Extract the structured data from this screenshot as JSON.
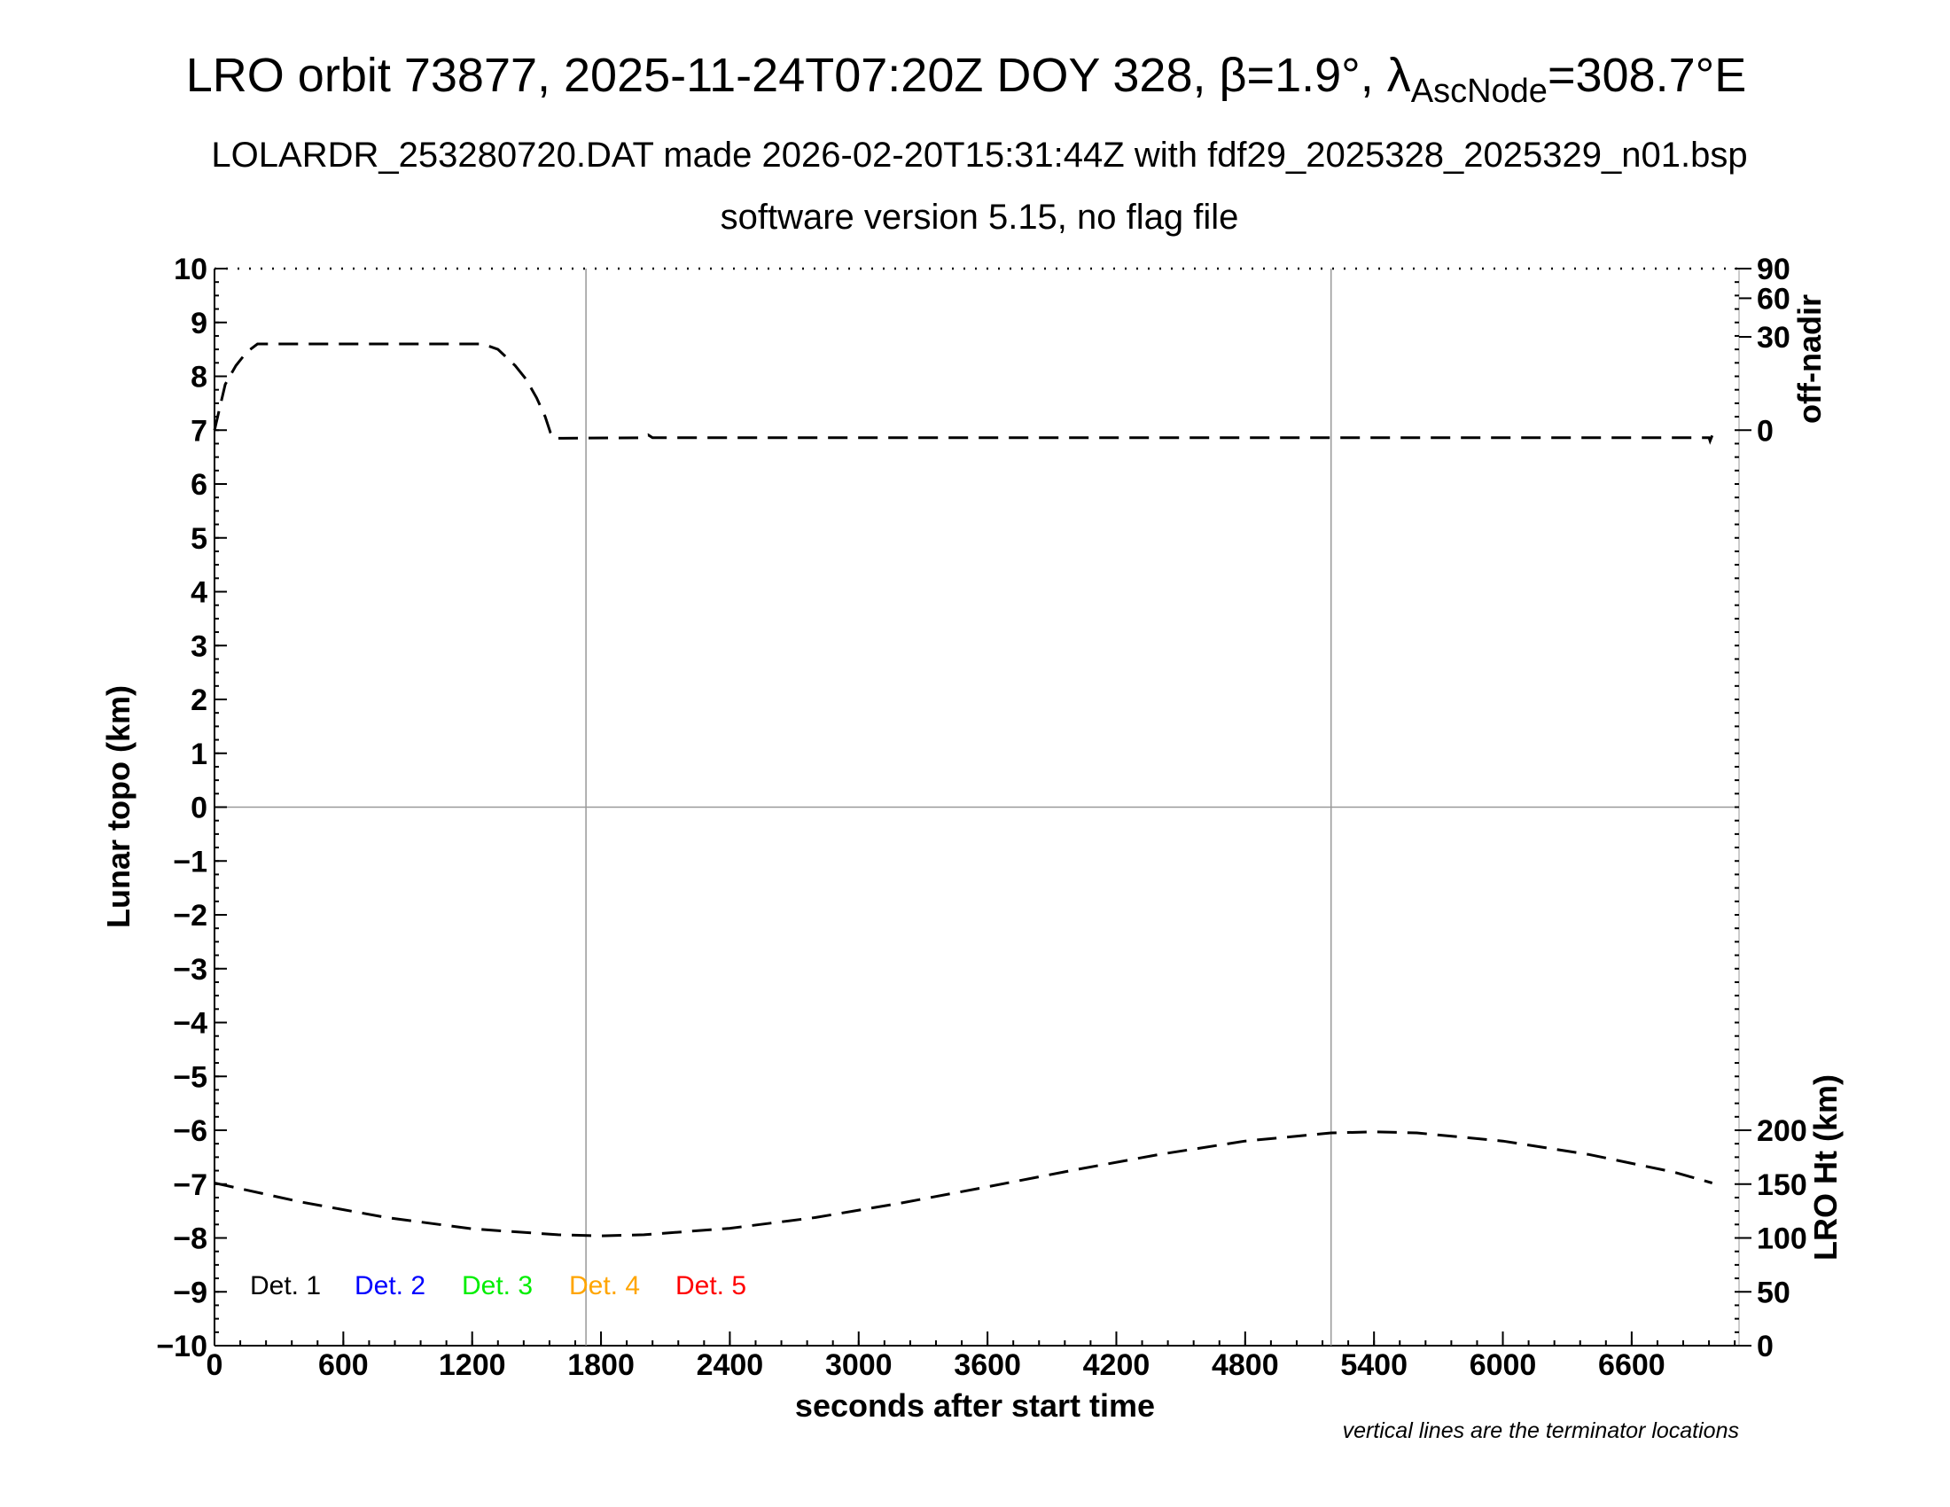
{
  "header": {
    "title_main": "LRO orbit 73877, 2025-11-24T07:20Z DOY 328, β=1.9°, λ",
    "title_sub": "AscNode",
    "title_end": "=308.7°E",
    "subtitle1": "LOLARDR_253280720.DAT made 2026-02-20T15:31:44Z with fdf29_2025328_2025329_n01.bsp",
    "subtitle2": "software version 5.15, no flag file"
  },
  "footer": {
    "note": "vertical lines are the terminator locations"
  },
  "chart_data": {
    "type": "line",
    "title": "",
    "xlabel": "seconds after start time",
    "ylabel": "Lunar topo (km)",
    "y2label_top": "off-nadir",
    "y2label_bottom": "LRO Ht (km)",
    "xlim": [
      0,
      7100
    ],
    "ylim": [
      -10,
      10
    ],
    "xticks": [
      0,
      600,
      1200,
      1800,
      2400,
      3000,
      3600,
      4200,
      4800,
      5400,
      6000,
      6600
    ],
    "yticks": [
      10,
      9,
      8,
      7,
      6,
      5,
      4,
      3,
      2,
      1,
      0,
      -1,
      -2,
      -3,
      -4,
      -5,
      -6,
      -7,
      -8,
      -9,
      -10
    ],
    "ytick_labels": [
      "10",
      "9",
      "8",
      "7",
      "6",
      "5",
      "4",
      "3",
      "2",
      "1",
      "0",
      "−1",
      "−2",
      "−3",
      "−4",
      "−5",
      "−6",
      "−7",
      "−8",
      "−9",
      "−10"
    ],
    "offnadir_ticks": [
      "90",
      "60",
      "30",
      "0"
    ],
    "height_ticks": [
      "200",
      "150",
      "100",
      "50",
      "0"
    ],
    "terminator_x": [
      1730,
      5200
    ],
    "grid": false,
    "legend_position": "bottom-left",
    "legend": [
      {
        "label": "Det. 1",
        "color": "#000000"
      },
      {
        "label": "Det. 2",
        "color": "#0000ff"
      },
      {
        "label": "Det. 3",
        "color": "#00ee00"
      },
      {
        "label": "Det. 4",
        "color": "#ffa500"
      },
      {
        "label": "Det. 5",
        "color": "#ff0000"
      }
    ],
    "series": [
      {
        "style": "dashed",
        "color": "#000000",
        "x": [
          0,
          50,
          100,
          150,
          200,
          1250,
          1320,
          1400,
          1450,
          1500,
          1540,
          1565,
          1580,
          1600,
          2000,
          2020,
          2040,
          3000,
          4000,
          5000,
          6000,
          6960,
          6965,
          6975
        ],
        "y": [
          7.0,
          7.85,
          8.2,
          8.45,
          8.6,
          8.6,
          8.5,
          8.2,
          7.95,
          7.6,
          7.25,
          6.95,
          6.85,
          6.85,
          6.86,
          6.91,
          6.86,
          6.86,
          6.86,
          6.86,
          6.86,
          6.86,
          6.8,
          6.9
        ]
      },
      {
        "style": "dashed",
        "color": "#000000",
        "x": [
          0,
          400,
          800,
          1200,
          1600,
          1800,
          2000,
          2400,
          2800,
          3200,
          3600,
          4000,
          4400,
          4800,
          5200,
          5400,
          5600,
          6000,
          6400,
          6800,
          6975
        ],
        "y": [
          -6.98,
          -7.33,
          -7.62,
          -7.83,
          -7.94,
          -7.96,
          -7.94,
          -7.82,
          -7.62,
          -7.35,
          -7.05,
          -6.74,
          -6.45,
          -6.2,
          -6.05,
          -6.03,
          -6.05,
          -6.2,
          -6.45,
          -6.78,
          -6.98
        ]
      }
    ]
  }
}
